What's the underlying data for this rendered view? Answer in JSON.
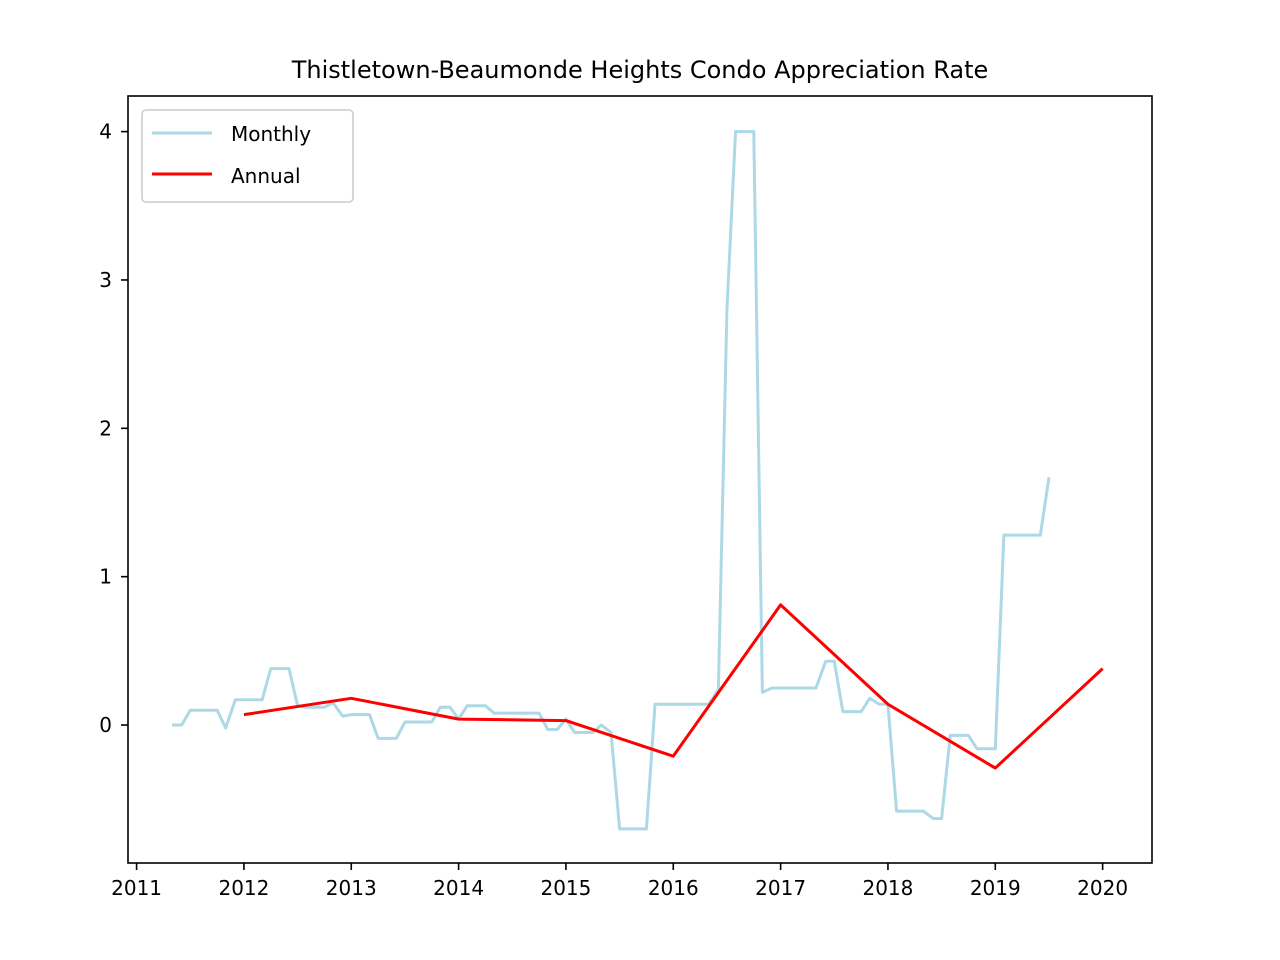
{
  "chart_data": {
    "type": "line",
    "title": "Thistletown-Beaumonde Heights Condo Appreciation Rate",
    "xlabel": "",
    "ylabel": "",
    "xlim": [
      2010.92,
      2020.46
    ],
    "ylim": [
      -0.93,
      4.24
    ],
    "xticks": [
      2011,
      2012,
      2013,
      2014,
      2015,
      2016,
      2017,
      2018,
      2019,
      2020
    ],
    "xtick_labels": [
      "2011",
      "2012",
      "2013",
      "2014",
      "2015",
      "2016",
      "2017",
      "2018",
      "2019",
      "2020"
    ],
    "yticks": [
      0,
      1,
      2,
      3,
      4
    ],
    "ytick_labels": [
      "0",
      "1",
      "2",
      "3",
      "4"
    ],
    "grid": false,
    "legend_position": "top-left",
    "series": [
      {
        "name": "Monthly",
        "color": "#add8e6",
        "points": [
          [
            2011.33,
            0.0
          ],
          [
            2011.42,
            0.0
          ],
          [
            2011.5,
            0.1
          ],
          [
            2011.58,
            0.1
          ],
          [
            2011.67,
            0.1
          ],
          [
            2011.75,
            0.1
          ],
          [
            2011.83,
            -0.02
          ],
          [
            2011.92,
            0.17
          ],
          [
            2012.0,
            0.17
          ],
          [
            2012.08,
            0.17
          ],
          [
            2012.17,
            0.17
          ],
          [
            2012.25,
            0.38
          ],
          [
            2012.33,
            0.38
          ],
          [
            2012.42,
            0.38
          ],
          [
            2012.5,
            0.13
          ],
          [
            2012.58,
            0.12
          ],
          [
            2012.67,
            0.12
          ],
          [
            2012.75,
            0.12
          ],
          [
            2012.83,
            0.15
          ],
          [
            2012.92,
            0.06
          ],
          [
            2013.0,
            0.07
          ],
          [
            2013.08,
            0.07
          ],
          [
            2013.17,
            0.07
          ],
          [
            2013.25,
            -0.09
          ],
          [
            2013.33,
            -0.09
          ],
          [
            2013.42,
            -0.09
          ],
          [
            2013.5,
            0.02
          ],
          [
            2013.58,
            0.02
          ],
          [
            2013.67,
            0.02
          ],
          [
            2013.75,
            0.02
          ],
          [
            2013.83,
            0.12
          ],
          [
            2013.92,
            0.12
          ],
          [
            2014.0,
            0.04
          ],
          [
            2014.08,
            0.13
          ],
          [
            2014.17,
            0.13
          ],
          [
            2014.25,
            0.13
          ],
          [
            2014.33,
            0.08
          ],
          [
            2014.42,
            0.08
          ],
          [
            2014.5,
            0.08
          ],
          [
            2014.58,
            0.08
          ],
          [
            2014.67,
            0.08
          ],
          [
            2014.75,
            0.08
          ],
          [
            2014.83,
            -0.03
          ],
          [
            2014.92,
            -0.03
          ],
          [
            2015.0,
            0.04
          ],
          [
            2015.08,
            -0.05
          ],
          [
            2015.17,
            -0.05
          ],
          [
            2015.25,
            -0.05
          ],
          [
            2015.33,
            0.0
          ],
          [
            2015.42,
            -0.05
          ],
          [
            2015.5,
            -0.7
          ],
          [
            2015.58,
            -0.7
          ],
          [
            2015.67,
            -0.7
          ],
          [
            2015.75,
            -0.7
          ],
          [
            2015.83,
            0.14
          ],
          [
            2015.92,
            0.14
          ],
          [
            2016.0,
            0.14
          ],
          [
            2016.08,
            0.14
          ],
          [
            2016.17,
            0.14
          ],
          [
            2016.25,
            0.14
          ],
          [
            2016.33,
            0.14
          ],
          [
            2016.42,
            0.24
          ],
          [
            2016.5,
            2.8
          ],
          [
            2016.58,
            4.0
          ],
          [
            2016.67,
            4.0
          ],
          [
            2016.75,
            4.0
          ],
          [
            2016.83,
            0.22
          ],
          [
            2016.92,
            0.25
          ],
          [
            2017.0,
            0.25
          ],
          [
            2017.08,
            0.25
          ],
          [
            2017.17,
            0.25
          ],
          [
            2017.25,
            0.25
          ],
          [
            2017.33,
            0.25
          ],
          [
            2017.42,
            0.43
          ],
          [
            2017.5,
            0.43
          ],
          [
            2017.58,
            0.09
          ],
          [
            2017.67,
            0.09
          ],
          [
            2017.75,
            0.09
          ],
          [
            2017.83,
            0.18
          ],
          [
            2017.92,
            0.14
          ],
          [
            2018.0,
            0.14
          ],
          [
            2018.08,
            -0.58
          ],
          [
            2018.17,
            -0.58
          ],
          [
            2018.25,
            -0.58
          ],
          [
            2018.33,
            -0.58
          ],
          [
            2018.42,
            -0.63
          ],
          [
            2018.5,
            -0.63
          ],
          [
            2018.58,
            -0.07
          ],
          [
            2018.67,
            -0.07
          ],
          [
            2018.75,
            -0.07
          ],
          [
            2018.83,
            -0.16
          ],
          [
            2018.92,
            -0.16
          ],
          [
            2019.0,
            -0.16
          ],
          [
            2019.08,
            1.28
          ],
          [
            2019.17,
            1.28
          ],
          [
            2019.25,
            1.28
          ],
          [
            2019.33,
            1.28
          ],
          [
            2019.42,
            1.28
          ],
          [
            2019.5,
            1.67
          ]
        ]
      },
      {
        "name": "Annual",
        "color": "#ff0000",
        "points": [
          [
            2012.0,
            0.07
          ],
          [
            2013.0,
            0.18
          ],
          [
            2014.0,
            0.04
          ],
          [
            2015.0,
            0.03
          ],
          [
            2016.0,
            -0.21
          ],
          [
            2017.0,
            0.81
          ],
          [
            2018.0,
            0.14
          ],
          [
            2019.0,
            -0.29
          ],
          [
            2020.0,
            0.38
          ]
        ]
      }
    ]
  }
}
